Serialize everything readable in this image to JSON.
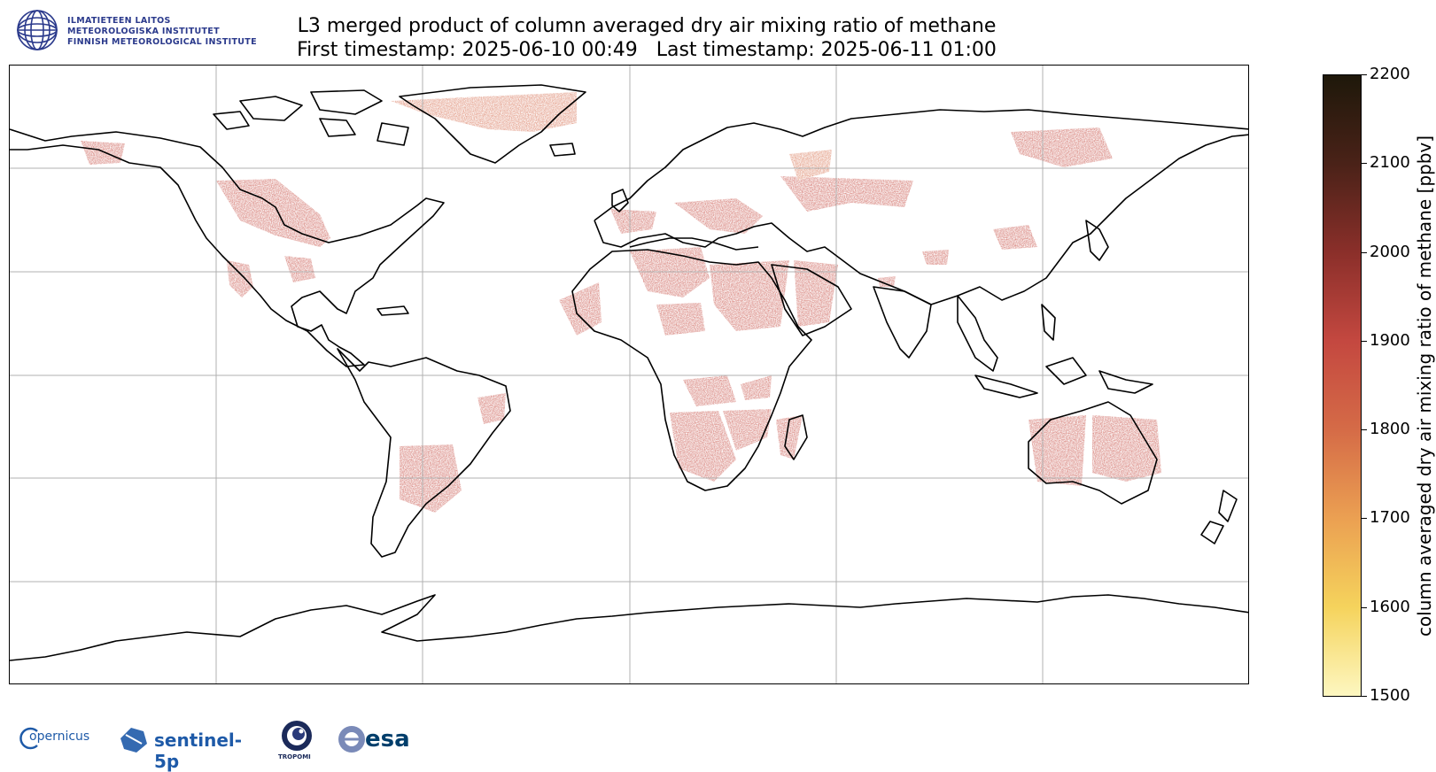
{
  "institute": {
    "name_fi": "ILMATIETEEN LAITOS",
    "name_sv": "METEOROLOGISKA INSTITUTET",
    "name_en": "FINNISH METEOROLOGICAL INSTITUTE"
  },
  "title": {
    "line1": "L3 merged product of column averaged dry air mixing ratio of methane",
    "line2": "First timestamp: 2025-06-10 00:49   Last timestamp: 2025-06-11 01:00"
  },
  "colorbar": {
    "label": "column averaged dry air mixing ratio of methane [ppbv]",
    "min": 1500,
    "max": 2200,
    "ticks": [
      "2200",
      "2100",
      "2000",
      "1900",
      "1800",
      "1700",
      "1600",
      "1500"
    ],
    "colors": [
      "#fdf7c0",
      "#f5d35c",
      "#eba052",
      "#d56b47",
      "#c44840",
      "#8b2f2a",
      "#4a2218",
      "#1e180a"
    ]
  },
  "map": {
    "projection": "plate carree",
    "gridlines": true,
    "gridline_count_x": 5,
    "gridline_count_y": 5,
    "land_color": "#ffffff",
    "coastline_color": "#000000",
    "data_color_typical": "#c4483e"
  },
  "footer": {
    "copernicus": "opernicus",
    "sentinel": "sentinel-5p",
    "tropomi": "TROPOMI",
    "esa": "esa"
  }
}
